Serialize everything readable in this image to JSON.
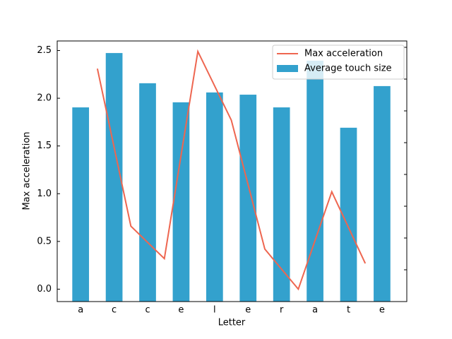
{
  "chart_data": {
    "type": "bar",
    "xlabel": "Letter",
    "ylabel": "Max acceleration",
    "categories": [
      "a",
      "c",
      "c",
      "e",
      "l",
      "e",
      "r",
      "a",
      "t",
      "e"
    ],
    "xlim": [
      -0.7,
      9.74
    ],
    "ylim": [
      -0.13,
      2.6
    ],
    "yticks": [
      {
        "value": 0,
        "label": "0.0"
      },
      0.5,
      {
        "value": 1,
        "label": "1.0"
      },
      1.5,
      {
        "value": 2,
        "label": "2.0"
      },
      2.5
    ],
    "y2lim": [
      0,
      8.2
    ],
    "y2ticks": [
      1,
      2,
      3,
      4,
      5,
      6,
      7,
      8
    ],
    "legend": "upper right",
    "series": [
      {
        "name": "Max acceleration",
        "type": "line",
        "color": "#ee6650",
        "x": [
          0.5,
          1.5,
          2.5,
          3.5,
          4.5,
          5.5,
          6.5,
          7.5,
          8.5
        ],
        "values": [
          2.31,
          0.66,
          0.32,
          2.49,
          1.77,
          0.42,
          0.0,
          1.02,
          0.27
        ]
      },
      {
        "name": "Average touch size",
        "type": "bar",
        "axis": "y2",
        "color": "#33a1cd",
        "values": [
          6.11,
          7.82,
          6.87,
          6.27,
          6.58,
          6.51,
          6.11,
          7.58,
          5.47,
          6.78
        ]
      }
    ]
  }
}
